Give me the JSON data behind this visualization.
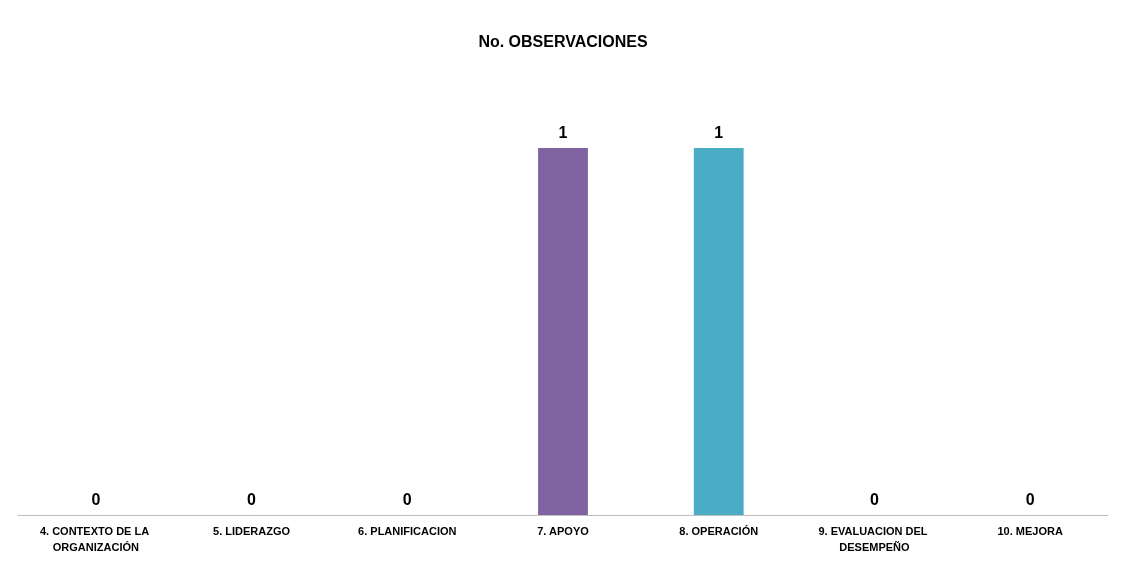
{
  "chart_data": {
    "type": "bar",
    "title": "No. OBSERVACIONES",
    "categories": [
      "4. CONTEXTO DE LA ORGANIZACIÓN",
      "5. LIDERAZGO",
      "6. PLANIFICACION",
      "7. APOYO",
      "8. OPERACIÓN",
      "9. EVALUACION DEL DESEMPEÑO",
      "10. MEJORA"
    ],
    "values": [
      0,
      0,
      0,
      1,
      1,
      0,
      0
    ],
    "colors": [
      "#4f81bd",
      "#c0504d",
      "#9bbb59",
      "#8064a2",
      "#4bacc6",
      "#f79646",
      "#2c4d75"
    ],
    "data_labels": true
  }
}
